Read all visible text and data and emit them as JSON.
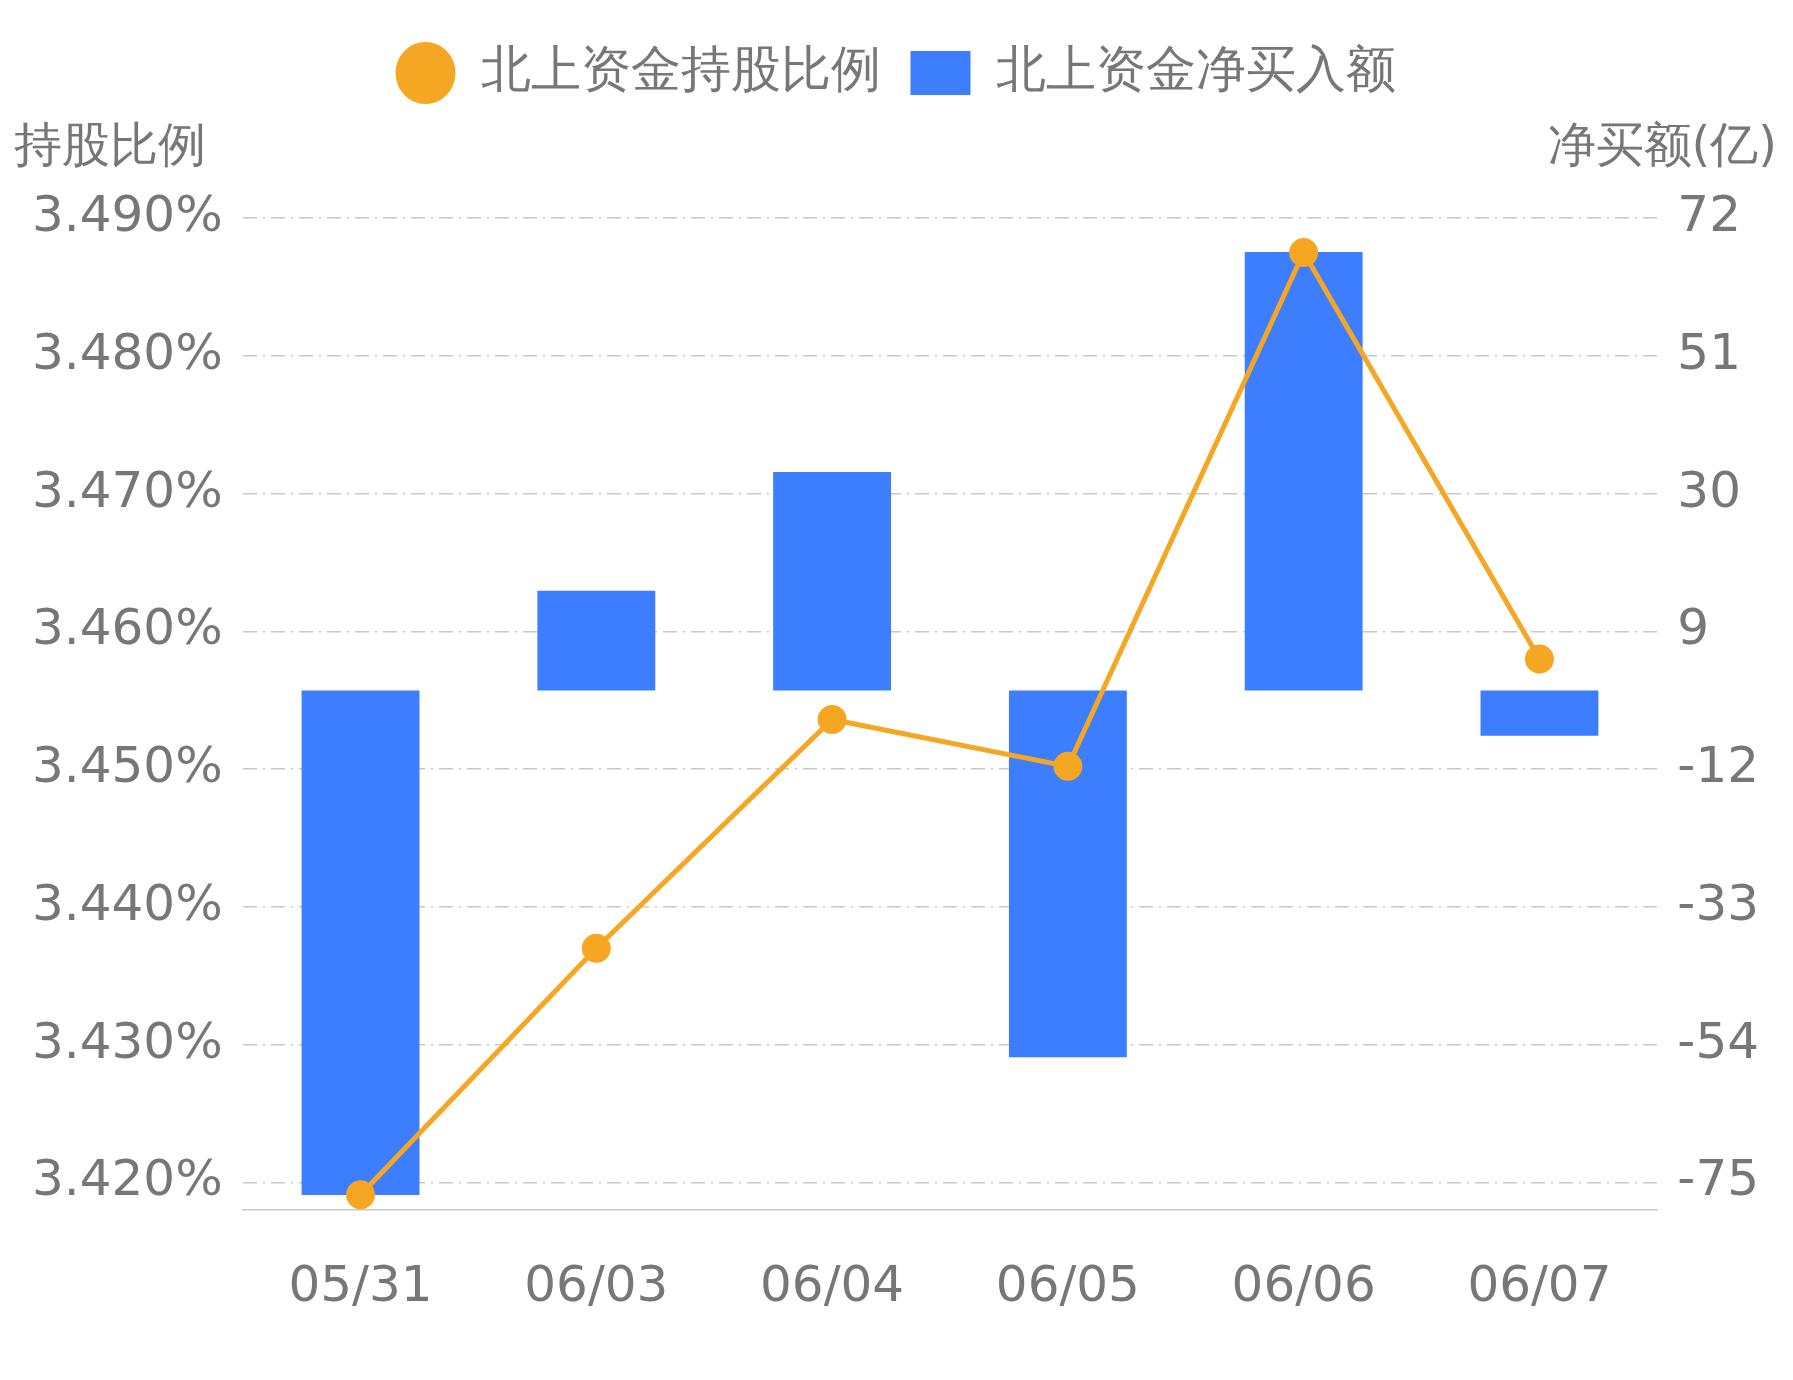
{
  "chart_data": {
    "type": "bar",
    "categories": [
      "05/31",
      "06/03",
      "06/04",
      "06/05",
      "06/06",
      "06/07"
    ],
    "series": [
      {
        "name": "北上资金持股比例",
        "type": "line",
        "color": "#f5a623",
        "marker": "circle",
        "values": [
          3.4191,
          3.437,
          3.4536,
          3.4502,
          3.4875,
          3.458
        ]
      },
      {
        "name": "北上资金净买入额",
        "axis": "y2",
        "color": "#3d7eff",
        "values": [
          -76.9,
          15.2,
          33.3,
          -55.9,
          66.8,
          -6.9
        ]
      }
    ],
    "ylabel": "持股比例",
    "y2label": "净买额(亿)",
    "ylim": [
      3.418,
      3.49
    ],
    "yticks": [
      {
        "value": 3.42,
        "label": "3.420%"
      },
      {
        "value": 3.43,
        "label": "3.430%"
      },
      {
        "value": 3.44,
        "label": "3.440%"
      },
      {
        "value": 3.45,
        "label": "3.450%"
      },
      {
        "value": 3.46,
        "label": "3.460%"
      },
      {
        "value": 3.47,
        "label": "3.470%"
      },
      {
        "value": 3.48,
        "label": "3.480%"
      },
      {
        "value": 3.49,
        "label": "3.490%"
      }
    ],
    "y2lim": [
      -79.2,
      72
    ],
    "y2ticks": [
      -75,
      -54,
      -33,
      -12,
      9,
      30,
      51,
      72
    ],
    "grid": "y",
    "legend": "top"
  }
}
